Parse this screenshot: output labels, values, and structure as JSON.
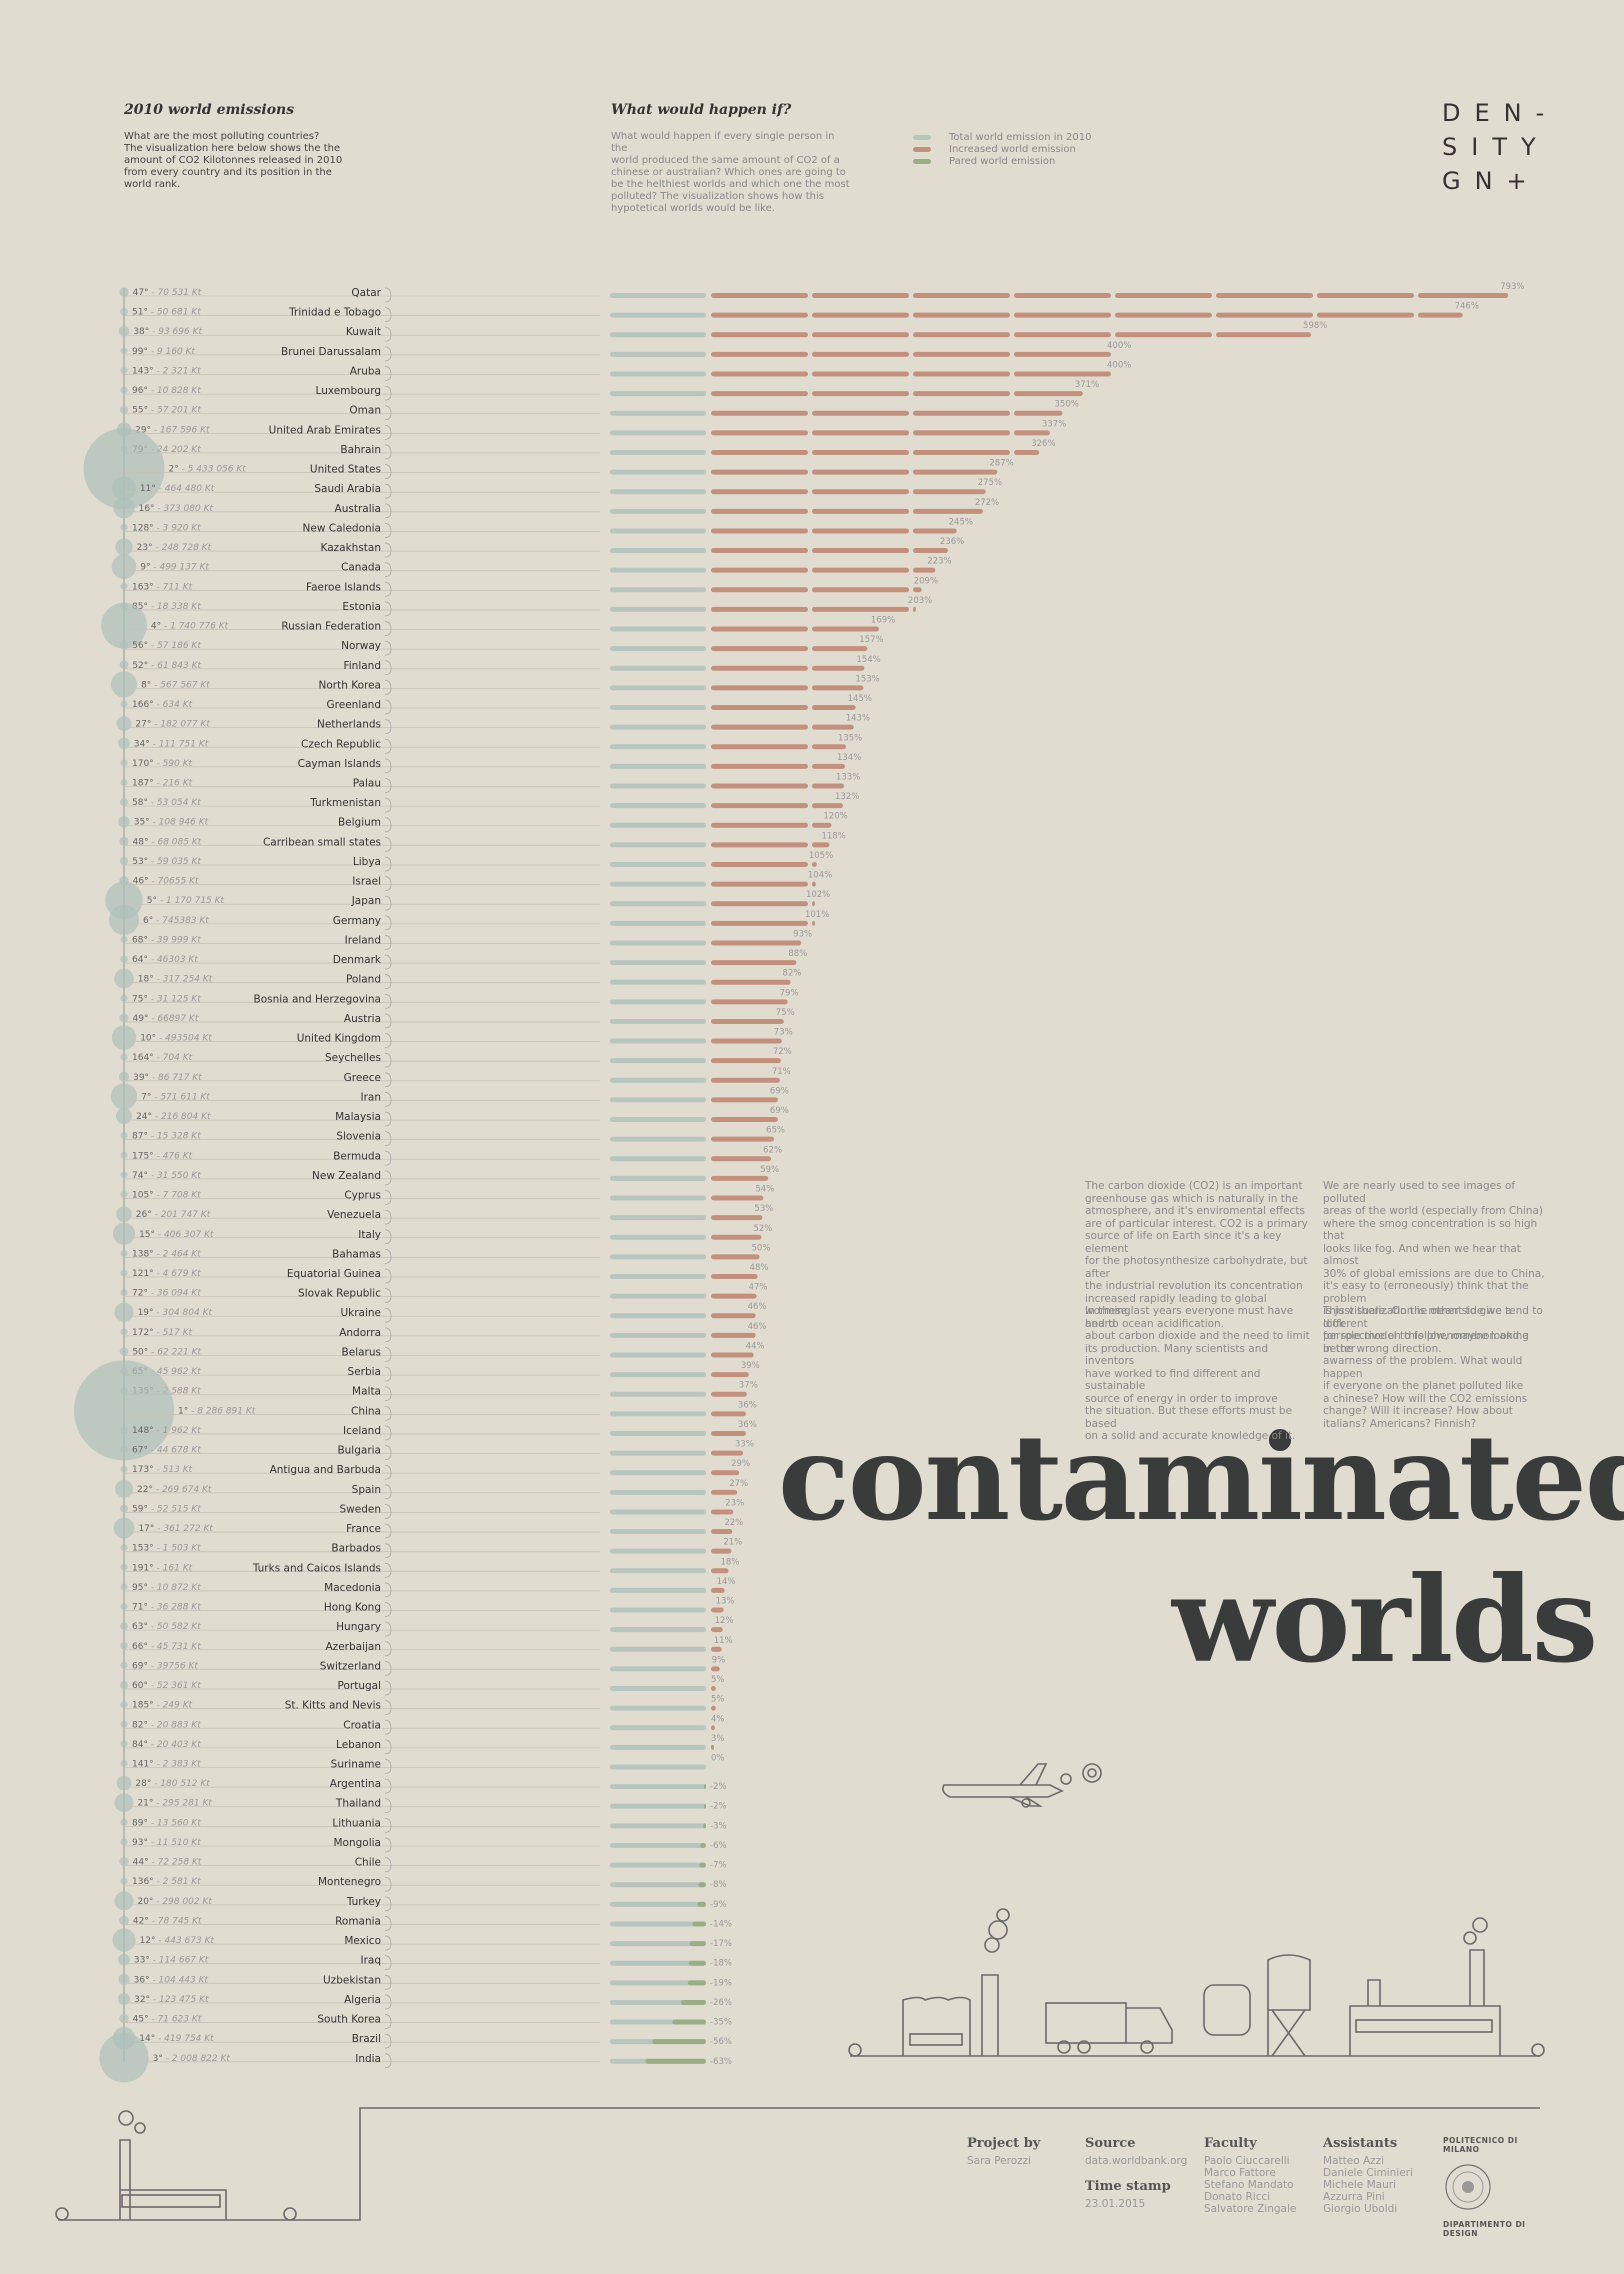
{
  "header": {
    "left_title": "2010 world emissions",
    "left_text_1": "What are the most polluting countries?",
    "left_text_2": "The visualization here below shows the the",
    "left_text_3": "amount of CO2 Kilotonnes released in 2010",
    "left_text_4": "from every country and its position in the",
    "left_text_5": "world rank.",
    "mid_title": "What would happen if?",
    "mid_text": [
      "What would happen if every single person in the",
      "world produced the same amount of CO2 of a",
      "chinese or australian? Which ones are going to",
      "be the helthiest worlds and which one the most",
      "polluted? The visualization shows how this",
      "hypotetical worlds would be like."
    ],
    "legend": [
      {
        "label": "Total world emission in 2010",
        "color": "#b6c6be"
      },
      {
        "label": "Increased world emission",
        "color": "#c4907e"
      },
      {
        "label": "Pared world emission",
        "color": "#9aae86"
      }
    ],
    "logo_lines": [
      "DEN-",
      "SITY",
      "GN+"
    ]
  },
  "colors": {
    "background": "#e1dcd0",
    "total": "#b6c6be",
    "increase": "#c4907e",
    "pared": "#9aae86",
    "bubble": "#aebfbb",
    "line": "#8a8a8a"
  },
  "chart_data": {
    "type": "bar",
    "unit": "Kt",
    "rows": [
      {
        "country": "Qatar",
        "rank": "47°",
        "emission": "70 531 Kt",
        "pct": "793%",
        "v": 793
      },
      {
        "country": "Trinidad e Tobago",
        "rank": "51°",
        "emission": "50 681 Kt",
        "pct": "746%",
        "v": 746
      },
      {
        "country": "Kuwait",
        "rank": "38°",
        "emission": "93 696 Kt",
        "pct": "598%",
        "v": 598
      },
      {
        "country": "Brunei Darussalam",
        "rank": "99°",
        "emission": "9 160 Kt",
        "pct": "400%",
        "v": 400
      },
      {
        "country": "Aruba",
        "rank": "143°",
        "emission": "2 321 Kt",
        "pct": "400%",
        "v": 400
      },
      {
        "country": "Luxembourg",
        "rank": "96°",
        "emission": "10 828 Kt",
        "pct": "371%",
        "v": 371
      },
      {
        "country": "Oman",
        "rank": "55°",
        "emission": "57 201 Kt",
        "pct": "350%",
        "v": 350
      },
      {
        "country": "United Arab Emirates",
        "rank": "29°",
        "emission": "167 596 Kt",
        "pct": "337%",
        "v": 337
      },
      {
        "country": "Bahrain",
        "rank": "79°",
        "emission": "24 202 Kt",
        "pct": "326%",
        "v": 326
      },
      {
        "country": "United States",
        "rank": "2°",
        "emission": "5 433 056 Kt",
        "pct": "287%",
        "v": 287
      },
      {
        "country": "Saudi Arabia",
        "rank": "11°",
        "emission": "464 480 Kt",
        "pct": "275%",
        "v": 275
      },
      {
        "country": "Australia",
        "rank": "16°",
        "emission": "373 080 Kt",
        "pct": "272%",
        "v": 272
      },
      {
        "country": "New Caledonia",
        "rank": "128°",
        "emission": "3 920 Kt",
        "pct": "245%",
        "v": 245
      },
      {
        "country": "Kazakhstan",
        "rank": "23°",
        "emission": "248 728 Kt",
        "pct": "236%",
        "v": 236
      },
      {
        "country": "Canada",
        "rank": "9°",
        "emission": "499 137 Kt",
        "pct": "223%",
        "v": 223
      },
      {
        "country": "Faeroe Islands",
        "rank": "163°",
        "emission": "711 Kt",
        "pct": "209%",
        "v": 209
      },
      {
        "country": "Estonia",
        "rank": "85°",
        "emission": "18 338 Kt",
        "pct": "203%",
        "v": 203
      },
      {
        "country": "Russian Federation",
        "rank": "4°",
        "emission": "1 740 776 Kt",
        "pct": "169%",
        "v": 169
      },
      {
        "country": "Norway",
        "rank": "56°",
        "emission": "57 186 Kt",
        "pct": "157%",
        "v": 157
      },
      {
        "country": "Finland",
        "rank": "52°",
        "emission": "61 843 Kt",
        "pct": "154%",
        "v": 154
      },
      {
        "country": "North Korea",
        "rank": "8°",
        "emission": "567 567 Kt",
        "pct": "153%",
        "v": 153
      },
      {
        "country": "Greenland",
        "rank": "166°",
        "emission": "634 Kt",
        "pct": "145%",
        "v": 145
      },
      {
        "country": "Netherlands",
        "rank": "27°",
        "emission": "182 077 Kt",
        "pct": "143%",
        "v": 143
      },
      {
        "country": "Czech Republic",
        "rank": "34°",
        "emission": "111 751 Kt",
        "pct": "135%",
        "v": 135
      },
      {
        "country": "Cayman Islands",
        "rank": "170°",
        "emission": "590 Kt",
        "pct": "134%",
        "v": 134
      },
      {
        "country": "Palau",
        "rank": "187°",
        "emission": "216 Kt",
        "pct": "133%",
        "v": 133
      },
      {
        "country": "Turkmenistan",
        "rank": "58°",
        "emission": "53 054 Kt",
        "pct": "132%",
        "v": 132
      },
      {
        "country": "Belgium",
        "rank": "35°",
        "emission": "108 946 Kt",
        "pct": "120%",
        "v": 120
      },
      {
        "country": "Carribean small states",
        "rank": "48°",
        "emission": "68 085 Kt",
        "pct": "118%",
        "v": 118
      },
      {
        "country": "Libya",
        "rank": "53°",
        "emission": "59 035 Kt",
        "pct": "105%",
        "v": 105
      },
      {
        "country": "Israel",
        "rank": "46°",
        "emission": "70655 Kt",
        "pct": "104%",
        "v": 104
      },
      {
        "country": "Japan",
        "rank": "5°",
        "emission": "1 170 715 Kt",
        "pct": "102%",
        "v": 102
      },
      {
        "country": "Germany",
        "rank": "6°",
        "emission": "745383 Kt",
        "pct": "101%",
        "v": 101
      },
      {
        "country": "Ireland",
        "rank": "68°",
        "emission": "39 999 Kt",
        "pct": "93%",
        "v": 93
      },
      {
        "country": "Denmark",
        "rank": "64°",
        "emission": "46303 Kt",
        "pct": "88%",
        "v": 88
      },
      {
        "country": "Poland",
        "rank": "18°",
        "emission": "317 254 Kt",
        "pct": "82%",
        "v": 82
      },
      {
        "country": "Bosnia and Herzegovina",
        "rank": "75°",
        "emission": "31 125 Kt",
        "pct": "79%",
        "v": 79
      },
      {
        "country": "Austria",
        "rank": "49°",
        "emission": "66897 Kt",
        "pct": "75%",
        "v": 75
      },
      {
        "country": "United Kingdom",
        "rank": "10°",
        "emission": "493504 Kt",
        "pct": "73%",
        "v": 73
      },
      {
        "country": "Seychelles",
        "rank": "164°",
        "emission": "704 Kt",
        "pct": "72%",
        "v": 72
      },
      {
        "country": "Greece",
        "rank": "39°",
        "emission": "86 717 Kt",
        "pct": "71%",
        "v": 71
      },
      {
        "country": "Iran",
        "rank": "7°",
        "emission": "571 611 Kt",
        "pct": "69%",
        "v": 69
      },
      {
        "country": "Malaysia",
        "rank": "24°",
        "emission": "216 804 Kt",
        "pct": "69%",
        "v": 69
      },
      {
        "country": "Slovenia",
        "rank": "87°",
        "emission": "15 328 Kt",
        "pct": "65%",
        "v": 65
      },
      {
        "country": "Bermuda",
        "rank": "175°",
        "emission": "476 Kt",
        "pct": "62%",
        "v": 62
      },
      {
        "country": "New Zealand",
        "rank": "74°",
        "emission": "31 550 Kt",
        "pct": "59%",
        "v": 59
      },
      {
        "country": "Cyprus",
        "rank": "105°",
        "emission": "7 708 Kt",
        "pct": "54%",
        "v": 54
      },
      {
        "country": "Venezuela",
        "rank": "26°",
        "emission": "201 747 Kt",
        "pct": "53%",
        "v": 53
      },
      {
        "country": "Italy",
        "rank": "15°",
        "emission": "406 307 Kt",
        "pct": "52%",
        "v": 52
      },
      {
        "country": "Bahamas",
        "rank": "138°",
        "emission": "2 464 Kt",
        "pct": "50%",
        "v": 50
      },
      {
        "country": "Equatorial Guinea",
        "rank": "121°",
        "emission": "4 679 Kt",
        "pct": "48%",
        "v": 48
      },
      {
        "country": "Slovak Republic",
        "rank": "72°",
        "emission": "36 094 Kt",
        "pct": "47%",
        "v": 47
      },
      {
        "country": "Ukraine",
        "rank": "19°",
        "emission": "304 804 Kt",
        "pct": "46%",
        "v": 46
      },
      {
        "country": "Andorra",
        "rank": "172°",
        "emission": "517 Kt",
        "pct": "46%",
        "v": 46
      },
      {
        "country": "Belarus",
        "rank": "50°",
        "emission": "62 221 Kt",
        "pct": "44%",
        "v": 44
      },
      {
        "country": "Serbia",
        "rank": "65°",
        "emission": "45 962 Kt",
        "pct": "39%",
        "v": 39
      },
      {
        "country": "Malta",
        "rank": "135°",
        "emission": "2 588 Kt",
        "pct": "37%",
        "v": 37
      },
      {
        "country": "China",
        "rank": "1°",
        "emission": "8 286 891 Kt",
        "pct": "36%",
        "v": 36
      },
      {
        "country": "Iceland",
        "rank": "148°",
        "emission": "1 962 Kt",
        "pct": "36%",
        "v": 36
      },
      {
        "country": "Bulgaria",
        "rank": "67°",
        "emission": "44 678 Kt",
        "pct": "33%",
        "v": 33
      },
      {
        "country": "Antigua and Barbuda",
        "rank": "173°",
        "emission": "513 Kt",
        "pct": "29%",
        "v": 29
      },
      {
        "country": "Spain",
        "rank": "22°",
        "emission": "269 674 Kt",
        "pct": "27%",
        "v": 27
      },
      {
        "country": "Sweden",
        "rank": "59°",
        "emission": "52 515 Kt",
        "pct": "23%",
        "v": 23
      },
      {
        "country": "France",
        "rank": "17°",
        "emission": "361 272 Kt",
        "pct": "22%",
        "v": 22
      },
      {
        "country": "Barbados",
        "rank": "153°",
        "emission": "1 503 Kt",
        "pct": "21%",
        "v": 21
      },
      {
        "country": "Turks and Caicos Islands",
        "rank": "191°",
        "emission": "161 Kt",
        "pct": "18%",
        "v": 18
      },
      {
        "country": "Macedonia",
        "rank": "95°",
        "emission": "10 872 Kt",
        "pct": "14%",
        "v": 14
      },
      {
        "country": "Hong Kong",
        "rank": "71°",
        "emission": "36 288 Kt",
        "pct": "13%",
        "v": 13
      },
      {
        "country": "Hungary",
        "rank": "63°",
        "emission": "50 582 Kt",
        "pct": "12%",
        "v": 12
      },
      {
        "country": "Azerbaijan",
        "rank": "66°",
        "emission": "45 731 Kt",
        "pct": "11%",
        "v": 11
      },
      {
        "country": "Switzerland",
        "rank": "69°",
        "emission": "39756 Kt",
        "pct": "9%",
        "v": 9
      },
      {
        "country": "Portugal",
        "rank": "60°",
        "emission": "52 361 Kt",
        "pct": "5%",
        "v": 5
      },
      {
        "country": "St. Kitts and Nevis",
        "rank": "185°",
        "emission": "249 Kt",
        "pct": "5%",
        "v": 5
      },
      {
        "country": "Croatia",
        "rank": "82°",
        "emission": "20 883 Kt",
        "pct": "4%",
        "v": 4
      },
      {
        "country": "Lebanon",
        "rank": "84°",
        "emission": "20 403 Kt",
        "pct": "3%",
        "v": 3
      },
      {
        "country": "Suriname",
        "rank": "141°",
        "emission": "2 383 Kt",
        "pct": "0%",
        "v": 0
      },
      {
        "country": "Argentina",
        "rank": "28°",
        "emission": "180 512 Kt",
        "pct": "-2%",
        "v": -2
      },
      {
        "country": "Thailand",
        "rank": "21°",
        "emission": "295 281 Kt",
        "pct": "-2%",
        "v": -2
      },
      {
        "country": "Lithuania",
        "rank": "89°",
        "emission": "13 560 Kt",
        "pct": "-3%",
        "v": -3
      },
      {
        "country": "Mongolia",
        "rank": "93°",
        "emission": "11 510 Kt",
        "pct": "-6%",
        "v": -6
      },
      {
        "country": "Chile",
        "rank": "44°",
        "emission": "72 258 Kt",
        "pct": "-7%",
        "v": -7
      },
      {
        "country": "Montenegro",
        "rank": "136°",
        "emission": "2 581 Kt",
        "pct": "-8%",
        "v": -8
      },
      {
        "country": "Turkey",
        "rank": "20°",
        "emission": "298 002 Kt",
        "pct": "-9%",
        "v": -9
      },
      {
        "country": "Romania",
        "rank": "42°",
        "emission": "78 745 Kt",
        "pct": "-14%",
        "v": -14
      },
      {
        "country": "Mexico",
        "rank": "12°",
        "emission": "443 673 Kt",
        "pct": "-17%",
        "v": -17
      },
      {
        "country": "Iraq",
        "rank": "33°",
        "emission": "114 667 Kt",
        "pct": "-18%",
        "v": -18
      },
      {
        "country": "Uzbekistan",
        "rank": "36°",
        "emission": "104 443 Kt",
        "pct": "-19%",
        "v": -19
      },
      {
        "country": "Algeria",
        "rank": "32°",
        "emission": "123 475 Kt",
        "pct": "-26%",
        "v": -26
      },
      {
        "country": "South Korea",
        "rank": "45°",
        "emission": "71 623 Kt",
        "pct": "-35%",
        "v": -35
      },
      {
        "country": "Brazil",
        "rank": "14°",
        "emission": "419 754 Kt",
        "pct": "-56%",
        "v": -56
      },
      {
        "country": "India",
        "rank": "3°",
        "emission": "2 008 822 Kt",
        "pct": "-63%",
        "v": -63
      }
    ]
  },
  "title": {
    "line1": "contaminated",
    "line2": "worlds"
  },
  "paragraphs": {
    "col1a": [
      "The carbon dioxide (CO2) is an important",
      "greenhouse gas which is naturally in the",
      "atmosphere, and it's enviromental effects",
      "are of particular interest. CO2 is a primary",
      "source of life on Earth since it's a key element",
      "for the photosynthesize carbohydrate, but after",
      "the industrial revolution its concentration",
      "increased rapidly leading to global worming",
      "and to ocean acidification."
    ],
    "col1b": [
      "In these last years everyone must have heard",
      "about carbon dioxide and the need to limit",
      "its production. Many scientists and inventors",
      "have worked to find different and sustainable",
      "source of energy in order to improve",
      "the situation. But these efforts must be based",
      "on a solid and accurate knowledge of it."
    ],
    "col2a": [
      "We are nearly used to see images of polluted",
      "areas of the world (especially from China)",
      "where the smog concentration is so high that",
      "looks like fog. And when we hear that almost",
      "30% of global emissions are due to China,",
      "it's easy to (erroneously) think that the problem",
      "is just there. On the other side we tend to look",
      "for role model to follow, maybe looking",
      "in the wrong direction."
    ],
    "col2b": [
      "This visualization is meant to give a different",
      "perspective on this phenomenon and a better",
      "awarness of the problem. What would happen",
      "if everyone on the planet polluted like",
      "a chinese?  How will the CO2 emissions",
      "change? Will it increase? How about",
      "italians? Americans? Finnish?"
    ]
  },
  "footer": {
    "project_label": "Project by",
    "project": "Sara Perozzi",
    "source_label": "Source",
    "source": "data.worldbank.org",
    "time_label": "Time stamp",
    "time": "23.01.2015",
    "faculty_label": "Faculty",
    "faculty": [
      "Paolo Ciuccarelli",
      "Marco Fattore",
      "Stefano Mandato",
      "Donato Ricci",
      "Salvatore Zingale"
    ],
    "assistants_label": "Assistants",
    "assistants": [
      "Matteo Azzi",
      "Daniele Ciminieri",
      "Michele Mauri",
      "Azzurra Pini",
      "Giorgio Uboldi"
    ],
    "uni_top": "POLITECNICO DI MILANO",
    "uni_bottom": "DIPARTIMENTO DI DESIGN"
  }
}
